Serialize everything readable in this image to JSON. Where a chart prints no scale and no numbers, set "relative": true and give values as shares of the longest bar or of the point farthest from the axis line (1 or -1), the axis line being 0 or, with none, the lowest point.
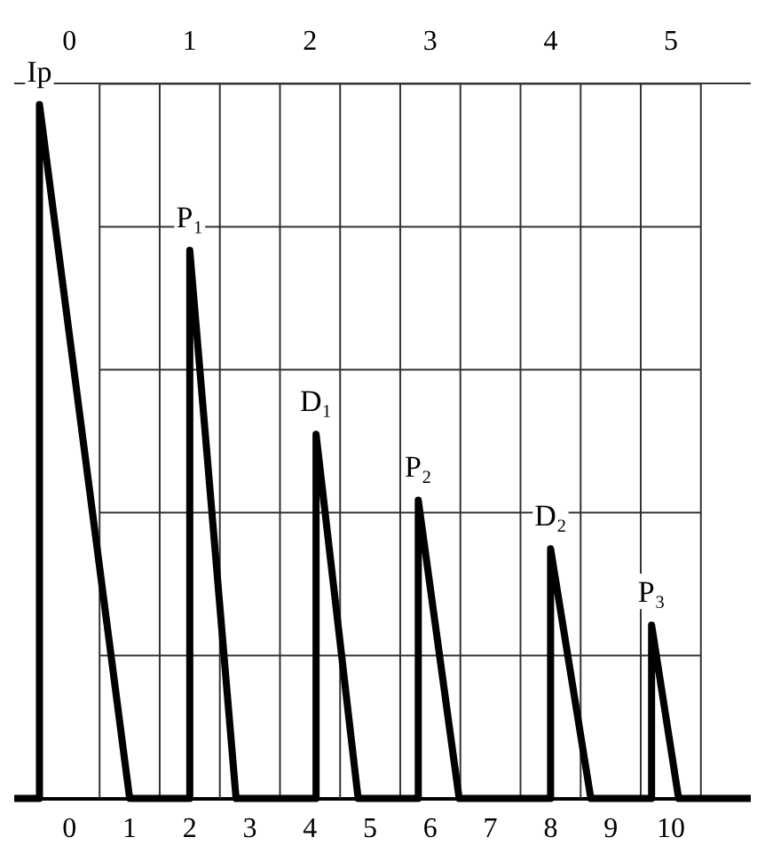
{
  "chart_data": {
    "type": "line",
    "relative": true,
    "grid": true,
    "marker": "none",
    "line_style": "solid",
    "x": [
      -0.92,
      -0.5,
      -0.5,
      1,
      2,
      2,
      2.77,
      4.1,
      4.1,
      4.8,
      5.8,
      5.8,
      6.48,
      8,
      8,
      8.67,
      9.68,
      9.68,
      10.13,
      11.33
    ],
    "series": [
      {
        "color": "#000000",
        "values": [
          0,
          0,
          1,
          0,
          0,
          0.79,
          0,
          0,
          0.525,
          0,
          0,
          0.43,
          0,
          0,
          0.36,
          0,
          0,
          0.25,
          0,
          0
        ]
      }
    ],
    "xlim": [
      -0.92,
      11.33
    ],
    "xticks": [
      0,
      {
        "value": 0.5,
        "label": null
      },
      1,
      {
        "value": 1.5,
        "label": null
      },
      2,
      {
        "value": 2.5,
        "label": null
      },
      3,
      {
        "value": 3.5,
        "label": null
      },
      4,
      {
        "value": 4.5,
        "label": null
      },
      5,
      {
        "value": 5.5,
        "label": null
      },
      6,
      {
        "value": 6.5,
        "label": null
      },
      7,
      {
        "value": 7.5,
        "label": null
      },
      8,
      {
        "value": 8.5,
        "label": null
      },
      9,
      {
        "value": 9.5,
        "label": null
      },
      10,
      {
        "value": 10.5,
        "label": null
      }
    ],
    "x2lim": [
      -0.46,
      5.665
    ],
    "x2ticks": [
      0,
      1,
      2,
      3,
      4,
      5
    ],
    "annotations": [
      {
        "text": "Ip",
        "x": -0.5,
        "y": 1
      },
      {
        "text": "P₁",
        "x": 2,
        "y": 0.79
      },
      {
        "text": "D₁",
        "x": 4.1,
        "y": 0.525
      },
      {
        "text": "P₂",
        "x": 5.8,
        "y": 0.43
      },
      {
        "text": "D₂",
        "x": 8,
        "y": 0.36
      },
      {
        "text": "P₃",
        "x": 9.68,
        "y": 0.25
      }
    ]
  }
}
